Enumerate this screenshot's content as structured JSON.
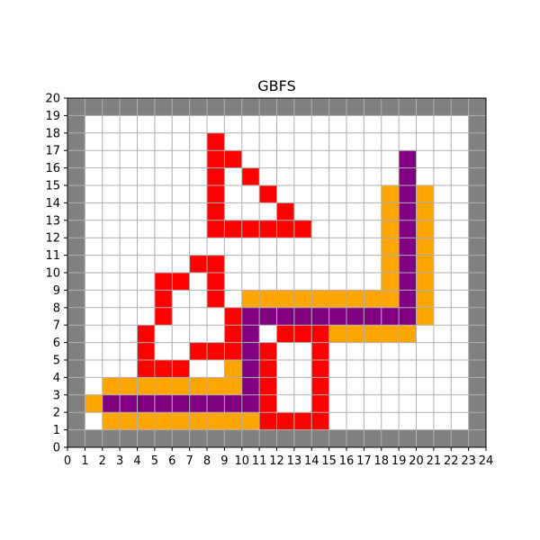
{
  "chart_data": {
    "type": "heatmap",
    "title": "GBFS",
    "xlabel": "",
    "ylabel": "",
    "xlim": [
      0,
      24
    ],
    "ylim": [
      0,
      20
    ],
    "x_ticks": [
      0,
      1,
      2,
      3,
      4,
      5,
      6,
      7,
      8,
      9,
      10,
      11,
      12,
      13,
      14,
      15,
      16,
      17,
      18,
      19,
      20,
      21,
      22,
      23,
      24
    ],
    "y_ticks": [
      0,
      1,
      2,
      3,
      4,
      5,
      6,
      7,
      8,
      9,
      10,
      11,
      12,
      13,
      14,
      15,
      16,
      17,
      18,
      19,
      20
    ],
    "grid": true,
    "colors": {
      "wall": "#808080",
      "explored": "#ff0000",
      "frontier": "#ffa500",
      "path": "#800080",
      "free": "#ffffff",
      "grid": "#b0b0b0"
    },
    "border_walls": true,
    "cells": {
      "explored": [
        [
          8,
          17
        ],
        [
          8,
          16
        ],
        [
          9,
          16
        ],
        [
          8,
          15
        ],
        [
          10,
          15
        ],
        [
          8,
          14
        ],
        [
          11,
          14
        ],
        [
          8,
          13
        ],
        [
          12,
          13
        ],
        [
          8,
          12
        ],
        [
          9,
          12
        ],
        [
          10,
          12
        ],
        [
          11,
          12
        ],
        [
          12,
          12
        ],
        [
          13,
          12
        ],
        [
          7,
          10
        ],
        [
          8,
          10
        ],
        [
          5,
          9
        ],
        [
          6,
          9
        ],
        [
          8,
          9
        ],
        [
          5,
          8
        ],
        [
          8,
          8
        ],
        [
          5,
          7
        ],
        [
          9,
          7
        ],
        [
          4,
          6
        ],
        [
          9,
          6
        ],
        [
          12,
          6
        ],
        [
          13,
          6
        ],
        [
          14,
          6
        ],
        [
          4,
          5
        ],
        [
          7,
          5
        ],
        [
          8,
          5
        ],
        [
          9,
          5
        ],
        [
          11,
          5
        ],
        [
          14,
          5
        ],
        [
          4,
          4
        ],
        [
          5,
          4
        ],
        [
          6,
          4
        ],
        [
          11,
          4
        ],
        [
          14,
          4
        ],
        [
          11,
          3
        ],
        [
          14,
          3
        ],
        [
          11,
          2
        ],
        [
          14,
          2
        ],
        [
          11,
          1
        ],
        [
          12,
          1
        ],
        [
          13,
          1
        ],
        [
          14,
          1
        ]
      ],
      "frontier": [
        [
          18,
          14
        ],
        [
          20,
          14
        ],
        [
          18,
          13
        ],
        [
          20,
          13
        ],
        [
          18,
          12
        ],
        [
          20,
          12
        ],
        [
          18,
          11
        ],
        [
          20,
          11
        ],
        [
          18,
          10
        ],
        [
          20,
          10
        ],
        [
          18,
          9
        ],
        [
          20,
          9
        ],
        [
          10,
          8
        ],
        [
          11,
          8
        ],
        [
          12,
          8
        ],
        [
          13,
          8
        ],
        [
          14,
          8
        ],
        [
          15,
          8
        ],
        [
          16,
          8
        ],
        [
          17,
          8
        ],
        [
          18,
          8
        ],
        [
          20,
          8
        ],
        [
          20,
          7
        ],
        [
          15,
          6
        ],
        [
          16,
          6
        ],
        [
          17,
          6
        ],
        [
          18,
          6
        ],
        [
          19,
          6
        ],
        [
          9,
          4
        ],
        [
          2,
          3
        ],
        [
          3,
          3
        ],
        [
          4,
          3
        ],
        [
          5,
          3
        ],
        [
          6,
          3
        ],
        [
          7,
          3
        ],
        [
          8,
          3
        ],
        [
          9,
          3
        ],
        [
          1,
          2
        ],
        [
          2,
          1
        ],
        [
          3,
          1
        ],
        [
          4,
          1
        ],
        [
          5,
          1
        ],
        [
          6,
          1
        ],
        [
          7,
          1
        ],
        [
          8,
          1
        ],
        [
          9,
          1
        ],
        [
          10,
          1
        ]
      ],
      "path": [
        [
          19,
          16
        ],
        [
          19,
          15
        ],
        [
          19,
          14
        ],
        [
          19,
          13
        ],
        [
          19,
          12
        ],
        [
          19,
          11
        ],
        [
          19,
          10
        ],
        [
          19,
          9
        ],
        [
          19,
          8
        ],
        [
          10,
          7
        ],
        [
          11,
          7
        ],
        [
          12,
          7
        ],
        [
          13,
          7
        ],
        [
          14,
          7
        ],
        [
          15,
          7
        ],
        [
          16,
          7
        ],
        [
          17,
          7
        ],
        [
          18,
          7
        ],
        [
          19,
          7
        ],
        [
          10,
          6
        ],
        [
          10,
          5
        ],
        [
          10,
          4
        ],
        [
          10,
          3
        ],
        [
          2,
          2
        ],
        [
          3,
          2
        ],
        [
          4,
          2
        ],
        [
          5,
          2
        ],
        [
          6,
          2
        ],
        [
          7,
          2
        ],
        [
          8,
          2
        ],
        [
          9,
          2
        ],
        [
          10,
          2
        ]
      ]
    }
  }
}
